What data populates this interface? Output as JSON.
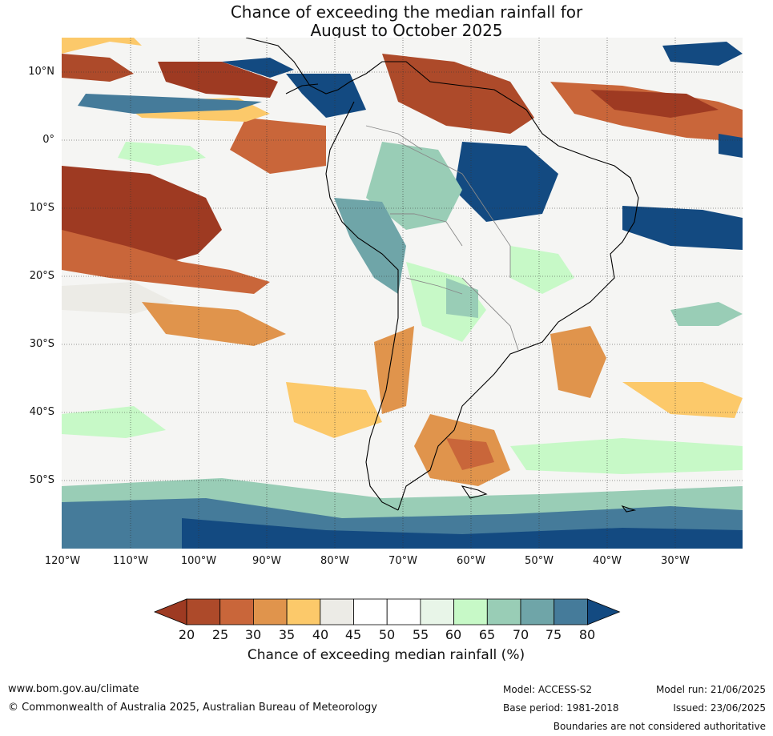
{
  "title_line1": "Chance of exceeding the median rainfall for",
  "title_line2": "August to October 2025",
  "lat_labels": [
    "10°N",
    "0°",
    "10°S",
    "20°S",
    "30°S",
    "40°S",
    "50°S"
  ],
  "lon_labels": [
    "120°W",
    "110°W",
    "100°W",
    "90°W",
    "80°W",
    "70°W",
    "60°W",
    "50°W",
    "40°W",
    "30°W"
  ],
  "colorbar": {
    "ticks": [
      "20",
      "25",
      "30",
      "35",
      "40",
      "45",
      "50",
      "55",
      "60",
      "65",
      "70",
      "75",
      "80"
    ],
    "colors": [
      "#9e3a22",
      "#ad4a2a",
      "#c9663a",
      "#e0944c",
      "#fcc96a",
      "#ecebe6",
      "#ffffff",
      "#ffffff",
      "#e8f5e8",
      "#c7f9c7",
      "#99cdb6",
      "#6fa5a8",
      "#457b9a",
      "#134a81"
    ],
    "label": "Chance of exceeding median rainfall (%)"
  },
  "footer": {
    "website": "www.bom.gov.au/climate",
    "copyright": "© Commonwealth of Australia 2025, Australian Bureau of Meteorology",
    "model": "Model: ACCESS-S2",
    "base_period": "Base period: 1981-2018",
    "model_run": "Model run: 21/06/2025",
    "issued": "Issued: 23/06/2025",
    "disclaimer": "Boundaries are not considered authoritative"
  }
}
